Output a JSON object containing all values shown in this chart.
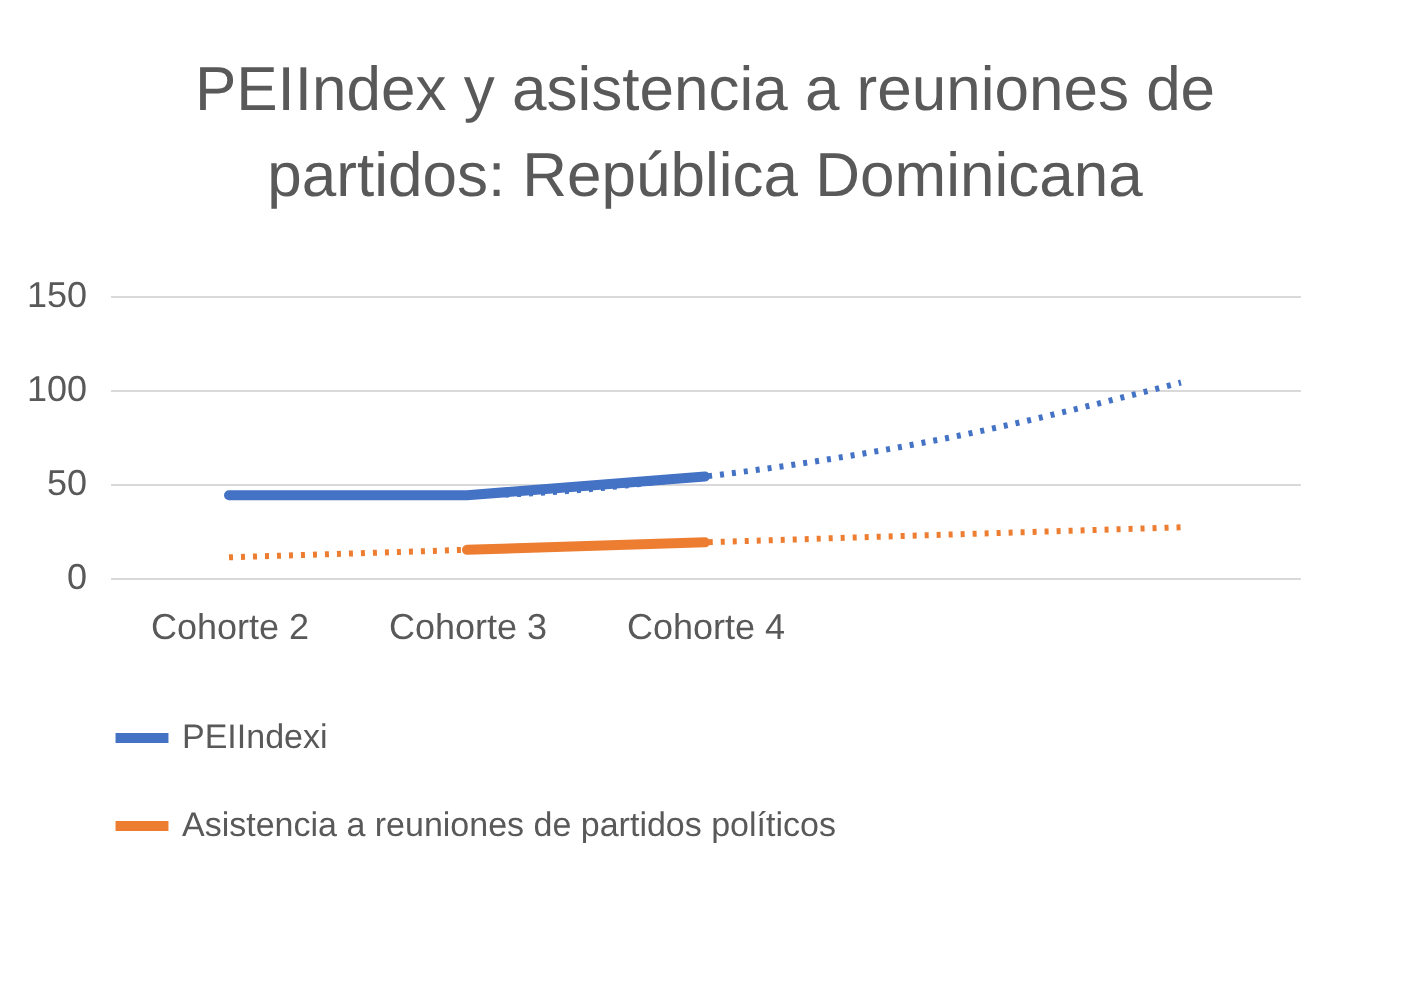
{
  "chart_data": {
    "type": "line",
    "title": "PEIIndex y asistencia a reuniones de partidos: República Dominicana",
    "categories": [
      "Cohorte 2",
      "Cohorte 3",
      "Cohorte 4",
      null,
      null
    ],
    "series": [
      {
        "name": "PEIIndexi",
        "color": "#4472c4",
        "values": [
          44,
          44,
          54,
          null,
          null
        ],
        "line_style": "solid"
      },
      {
        "name": "Asistencia a reuniones de partidos políticos",
        "color": "#ed7d31",
        "values": [
          null,
          15,
          19,
          null,
          null
        ],
        "line_style": "solid"
      },
      {
        "color": "#4472c4",
        "values": [
          44,
          44,
          54,
          74,
          104
        ],
        "line_style": "dotted"
      },
      {
        "color": "#ed7d31",
        "values": [
          11,
          15,
          19,
          23,
          27
        ],
        "line_style": "dotted"
      }
    ],
    "ylim": [
      0,
      150
    ],
    "yticks": [
      0,
      50,
      100,
      150
    ],
    "grid": "y",
    "legend": "bottom"
  }
}
